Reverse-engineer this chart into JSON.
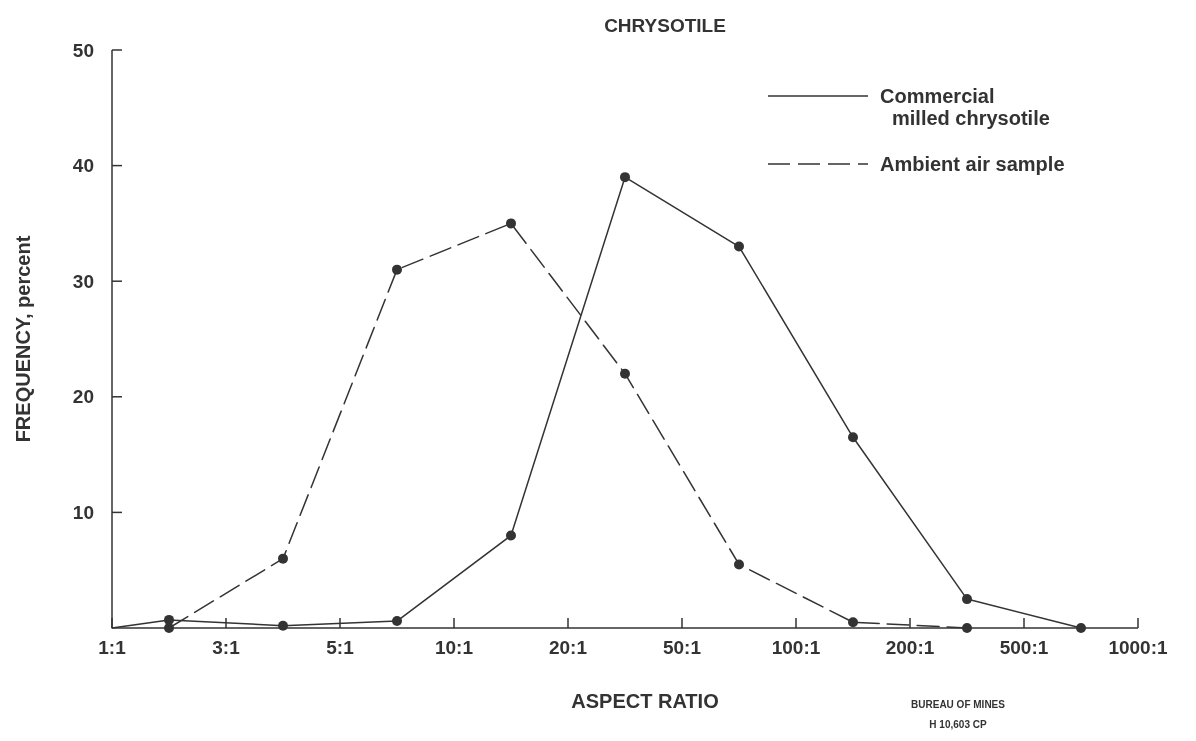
{
  "chart_data": {
    "type": "line",
    "title": "CHRYSOTILE",
    "xlabel": "ASPECT RATIO",
    "ylabel": "FREQUENCY, percent",
    "categories": [
      "1:1",
      null,
      "3:1",
      null,
      "5:1",
      null,
      "10:1",
      null,
      "20:1",
      null,
      "50:1",
      null,
      "100:1",
      null,
      "200:1",
      null,
      "500:1",
      null,
      "1000:1"
    ],
    "ylim": [
      0,
      50
    ],
    "yticks": [
      10,
      20,
      30,
      40,
      50
    ],
    "series": [
      {
        "name": "Commercial milled chrysotile",
        "color": "#333333",
        "line_style": "solid",
        "values": [
          0,
          0.7,
          null,
          0.2,
          null,
          0.6,
          null,
          8,
          null,
          39,
          null,
          33,
          null,
          16.5,
          null,
          2.5,
          null,
          0,
          null
        ]
      },
      {
        "name": "Ambient air sample",
        "color": "#333333",
        "line_style": "dashed",
        "values": [
          null,
          0,
          null,
          6,
          null,
          31,
          null,
          35,
          null,
          22,
          null,
          5.5,
          null,
          0.5,
          null,
          0,
          null,
          null,
          null
        ]
      }
    ],
    "marker": "circle",
    "legend": "top right",
    "annotations": [
      "BUREAU OF MINES",
      "H 10,603 CP"
    ]
  }
}
